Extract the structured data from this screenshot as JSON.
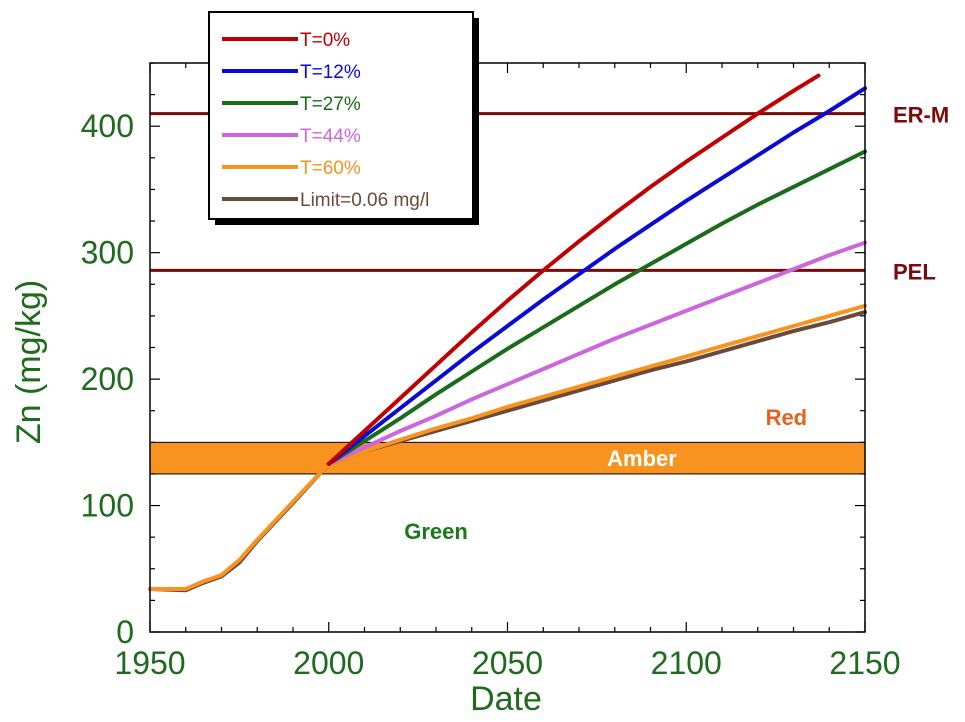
{
  "chart_data": {
    "type": "line",
    "xlabel": "Date",
    "ylabel": "Zn (mg/kg)",
    "xlim": [
      1950,
      2150
    ],
    "ylim": [
      0,
      450
    ],
    "x_ticks": [
      "1950",
      "2000",
      "2050",
      "2100",
      "2150"
    ],
    "y_ticks": [
      "0",
      "100",
      "200",
      "300",
      "400"
    ],
    "grid": false,
    "legend_position": "top-left",
    "colors": {
      "axis_text": "#1e6b1e",
      "threshold_line": "#7a0a0a",
      "amber_band": "#f7931e",
      "red_label": "#e8601c",
      "green_label": "#1a7a1a"
    },
    "thresholds": [
      {
        "label": "ER-M",
        "value": 410
      },
      {
        "label": "PEL",
        "value": 286
      }
    ],
    "band": {
      "label": "Amber",
      "from": 125,
      "to": 150
    },
    "region_labels": [
      {
        "text": "Red",
        "x": 2128,
        "y": 170
      },
      {
        "text": "Green",
        "x": 2030,
        "y": 80
      }
    ],
    "series": [
      {
        "name": "T=0%",
        "color": "#c00000",
        "x": [
          2000,
          2010,
          2020,
          2030,
          2040,
          2050,
          2060,
          2070,
          2080,
          2090,
          2100,
          2110,
          2120,
          2130,
          2137
        ],
        "y": [
          133,
          159,
          185,
          211,
          237,
          262,
          286,
          309,
          331,
          352,
          372,
          391,
          410,
          428,
          440
        ]
      },
      {
        "name": "T=12%",
        "color": "#0a0ad4",
        "x": [
          2000,
          2010,
          2020,
          2030,
          2040,
          2050,
          2060,
          2070,
          2080,
          2090,
          2100,
          2110,
          2120,
          2130,
          2140,
          2150
        ],
        "y": [
          133,
          155,
          177,
          199,
          221,
          242,
          263,
          283,
          303,
          322,
          341,
          359,
          377,
          395,
          412,
          430
        ]
      },
      {
        "name": "T=27%",
        "color": "#1a6b1a",
        "x": [
          2000,
          2010,
          2020,
          2030,
          2040,
          2050,
          2060,
          2070,
          2080,
          2090,
          2100,
          2110,
          2120,
          2130,
          2140,
          2150
        ],
        "y": [
          133,
          151,
          169,
          188,
          206,
          224,
          241,
          258,
          275,
          291,
          307,
          323,
          338,
          352,
          366,
          380
        ]
      },
      {
        "name": "T=44%",
        "color": "#cc66dd",
        "x": [
          2000,
          2010,
          2020,
          2030,
          2040,
          2050,
          2060,
          2070,
          2080,
          2090,
          2100,
          2110,
          2120,
          2130,
          2140,
          2150
        ],
        "y": [
          133,
          146,
          159,
          171,
          184,
          196,
          208,
          220,
          232,
          243,
          254,
          265,
          276,
          287,
          298,
          308
        ]
      },
      {
        "name": "T=60%",
        "color": "#f7931e",
        "x": [
          1950,
          1960,
          1965,
          1970,
          1975,
          1980,
          1990,
          2000,
          2010,
          2020,
          2030,
          2040,
          2050,
          2060,
          2070,
          2080,
          2090,
          2100,
          2110,
          2120,
          2130,
          2140,
          2150
        ],
        "y": [
          34,
          34,
          40,
          45,
          57,
          73,
          103,
          133,
          143,
          152,
          161,
          169,
          178,
          186,
          194,
          202,
          210,
          218,
          226,
          234,
          242,
          250,
          258
        ]
      },
      {
        "name": "Limit=0.06 mg/l",
        "color": "#6b4a3a",
        "x": [
          1950,
          1960,
          1965,
          1970,
          1975,
          1980,
          1990,
          2000,
          2010,
          2020,
          2030,
          2040,
          2050,
          2060,
          2070,
          2080,
          2090,
          2100,
          2110,
          2120,
          2130,
          2140,
          2150
        ],
        "y": [
          34,
          33,
          39,
          44,
          55,
          72,
          102,
          133,
          143,
          151,
          159,
          167,
          175,
          183,
          191,
          199,
          207,
          214,
          222,
          230,
          238,
          245,
          253
        ]
      }
    ]
  }
}
